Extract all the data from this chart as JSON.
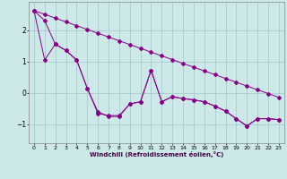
{
  "xlabel": "Windchill (Refroidissement éolien,°C)",
  "bg_color": "#cce8e8",
  "grid_color": "#aacccc",
  "line_color": "#880088",
  "xlim": [
    -0.5,
    23.5
  ],
  "ylim": [
    -1.6,
    2.9
  ],
  "yticks": [
    -1,
    0,
    1,
    2
  ],
  "xticks": [
    0,
    1,
    2,
    3,
    4,
    5,
    6,
    7,
    8,
    9,
    10,
    11,
    12,
    13,
    14,
    15,
    16,
    17,
    18,
    19,
    20,
    21,
    22,
    23
  ],
  "straight_line": [
    2.62,
    2.5,
    2.38,
    2.26,
    2.14,
    2.02,
    1.9,
    1.78,
    1.66,
    1.54,
    1.42,
    1.3,
    1.18,
    1.06,
    0.94,
    0.82,
    0.7,
    0.58,
    0.46,
    0.34,
    0.22,
    0.1,
    -0.02,
    -0.14
  ],
  "jagged1": [
    2.62,
    2.3,
    1.55,
    1.35,
    1.05,
    0.15,
    -0.6,
    -0.75,
    -0.75,
    -0.35,
    -0.28,
    0.72,
    -0.28,
    -0.12,
    -0.18,
    -0.22,
    -0.28,
    -0.42,
    -0.58,
    -0.82,
    -1.05,
    -0.82,
    -0.82,
    -0.85
  ],
  "jagged2": [
    2.62,
    1.05,
    1.55,
    1.35,
    1.05,
    0.15,
    -0.65,
    -0.72,
    -0.72,
    -0.35,
    -0.28,
    0.72,
    -0.28,
    -0.12,
    -0.18,
    -0.22,
    -0.28,
    -0.42,
    -0.58,
    -0.82,
    -1.05,
    -0.82,
    -0.82,
    -0.85
  ]
}
